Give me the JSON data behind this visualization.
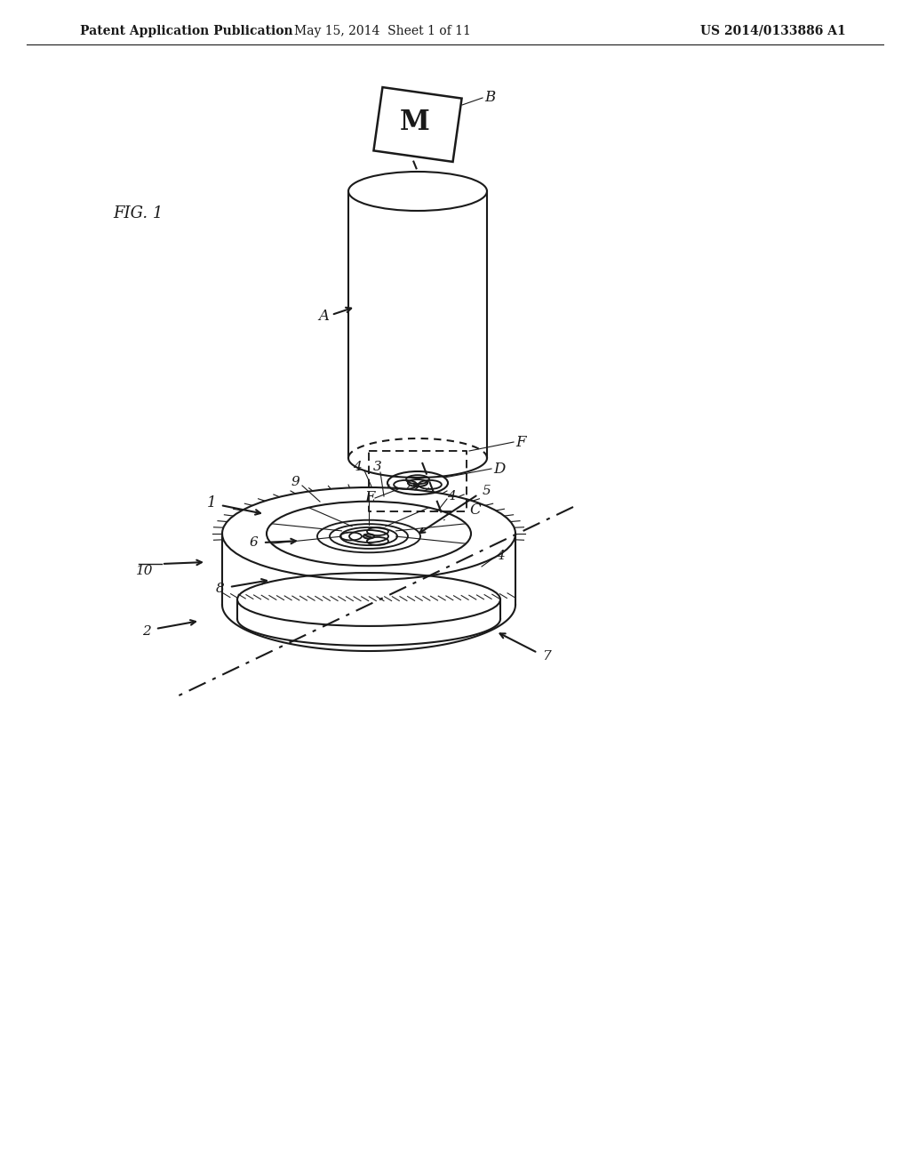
{
  "background_color": "#ffffff",
  "header_left": "Patent Application Publication",
  "header_mid": "May 15, 2014  Sheet 1 of 11",
  "header_right": "US 2014/0133886 A1",
  "fig_label": "FIG. 1",
  "label_A": "A",
  "label_B": "B",
  "label_C": "C",
  "label_D": "D",
  "label_E": "E",
  "label_F": "F",
  "label_1": "1",
  "label_2": "2",
  "label_3": "3",
  "label_4": "4",
  "label_5": "5",
  "label_6": "6",
  "label_7": "7",
  "label_8": "8",
  "label_9": "9",
  "label_10": "10",
  "line_color": "#1a1a1a",
  "line_width": 1.5,
  "font_size_header": 10,
  "font_size_label": 11,
  "font_size_fig": 13
}
